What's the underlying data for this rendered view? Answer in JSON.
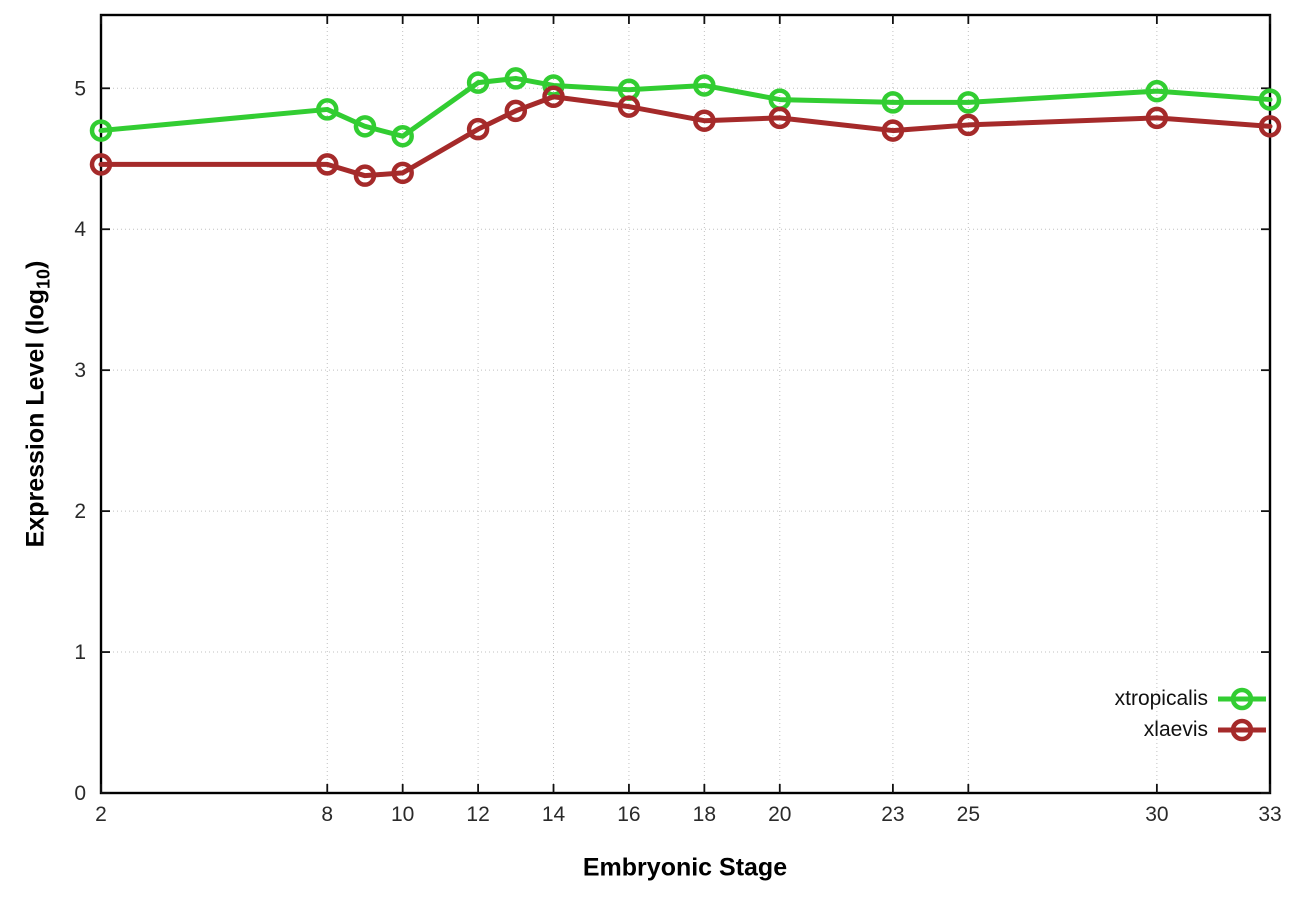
{
  "chart_data": {
    "type": "line",
    "title": "",
    "xlabel": "Embryonic Stage",
    "ylabel": "Expression Level (log10)",
    "ylabel_parts": {
      "prefix": "Expression Level (log",
      "sub": "10",
      "suffix": ")"
    },
    "x": [
      2,
      8,
      9,
      10,
      12,
      13,
      14,
      16,
      18,
      20,
      23,
      25,
      30,
      33
    ],
    "x_tick_labels": [
      2,
      8,
      10,
      12,
      14,
      16,
      18,
      20,
      23,
      25,
      30,
      33
    ],
    "y_ticks": [
      0,
      1,
      2,
      3,
      4,
      5
    ],
    "xlim": [
      2,
      33
    ],
    "ylim": [
      0,
      5.52
    ],
    "grid": true,
    "legend_position": "inside-bottom-right",
    "marker": "open-circle",
    "background": "#ffffff",
    "series": [
      {
        "name": "xtropicalis",
        "color": "#32cd32",
        "values": [
          4.7,
          4.85,
          4.73,
          4.66,
          5.04,
          5.07,
          5.02,
          4.99,
          5.02,
          4.92,
          4.9,
          4.9,
          4.98,
          4.92
        ]
      },
      {
        "name": "xlaevis",
        "color": "#a52a2a",
        "values": [
          4.46,
          4.46,
          4.38,
          4.4,
          4.71,
          4.84,
          4.94,
          4.87,
          4.77,
          4.79,
          4.7,
          4.74,
          4.79,
          4.73
        ]
      }
    ]
  }
}
